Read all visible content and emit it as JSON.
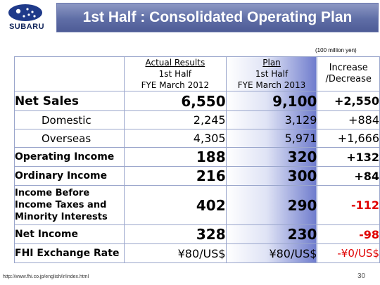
{
  "header": {
    "logo_text": "SUBARU",
    "title": "1st Half : Consolidated Operating Plan"
  },
  "unit_note": "(100 million yen)",
  "table": {
    "col_actual": {
      "line1": "Actual Results",
      "line2": "1st Half",
      "line3": "FYE March 2012"
    },
    "col_plan": {
      "line1": "Plan",
      "line2": "1st Half",
      "line3": "FYE March 2013"
    },
    "col_change": {
      "line1": "Increase",
      "line2": "/Decrease"
    },
    "rows": [
      {
        "label": "Net Sales",
        "actual": "6,550",
        "plan": "9,100",
        "change": "+2,550"
      },
      {
        "label": "Domestic",
        "actual": "2,245",
        "plan": "3,129",
        "change": "+884"
      },
      {
        "label": "Overseas",
        "actual": "4,305",
        "plan": "5,971",
        "change": "+1,666"
      },
      {
        "label": "Operating Income",
        "actual": "188",
        "plan": "320",
        "change": "+132"
      },
      {
        "label": "Ordinary Income",
        "actual": "216",
        "plan": "300",
        "change": "+84"
      },
      {
        "label_lines": [
          "Income Before",
          "Income Taxes and",
          "Minority Interests"
        ],
        "actual": "402",
        "plan": "290",
        "change": "-112"
      },
      {
        "label": "Net Income",
        "actual": "328",
        "plan": "230",
        "change": "-98"
      },
      {
        "label": "FHI Exchange Rate",
        "actual": "¥80/US$",
        "plan": "¥80/US$",
        "change": "-¥0/US$"
      }
    ]
  },
  "footer": {
    "url": "http://www.fhi.co.jp/english/ir/index.html",
    "page_number": "30"
  },
  "colors": {
    "title_bar": "#5f6ea6",
    "negative": "#e00000",
    "table_border": "#9aa6cc"
  }
}
